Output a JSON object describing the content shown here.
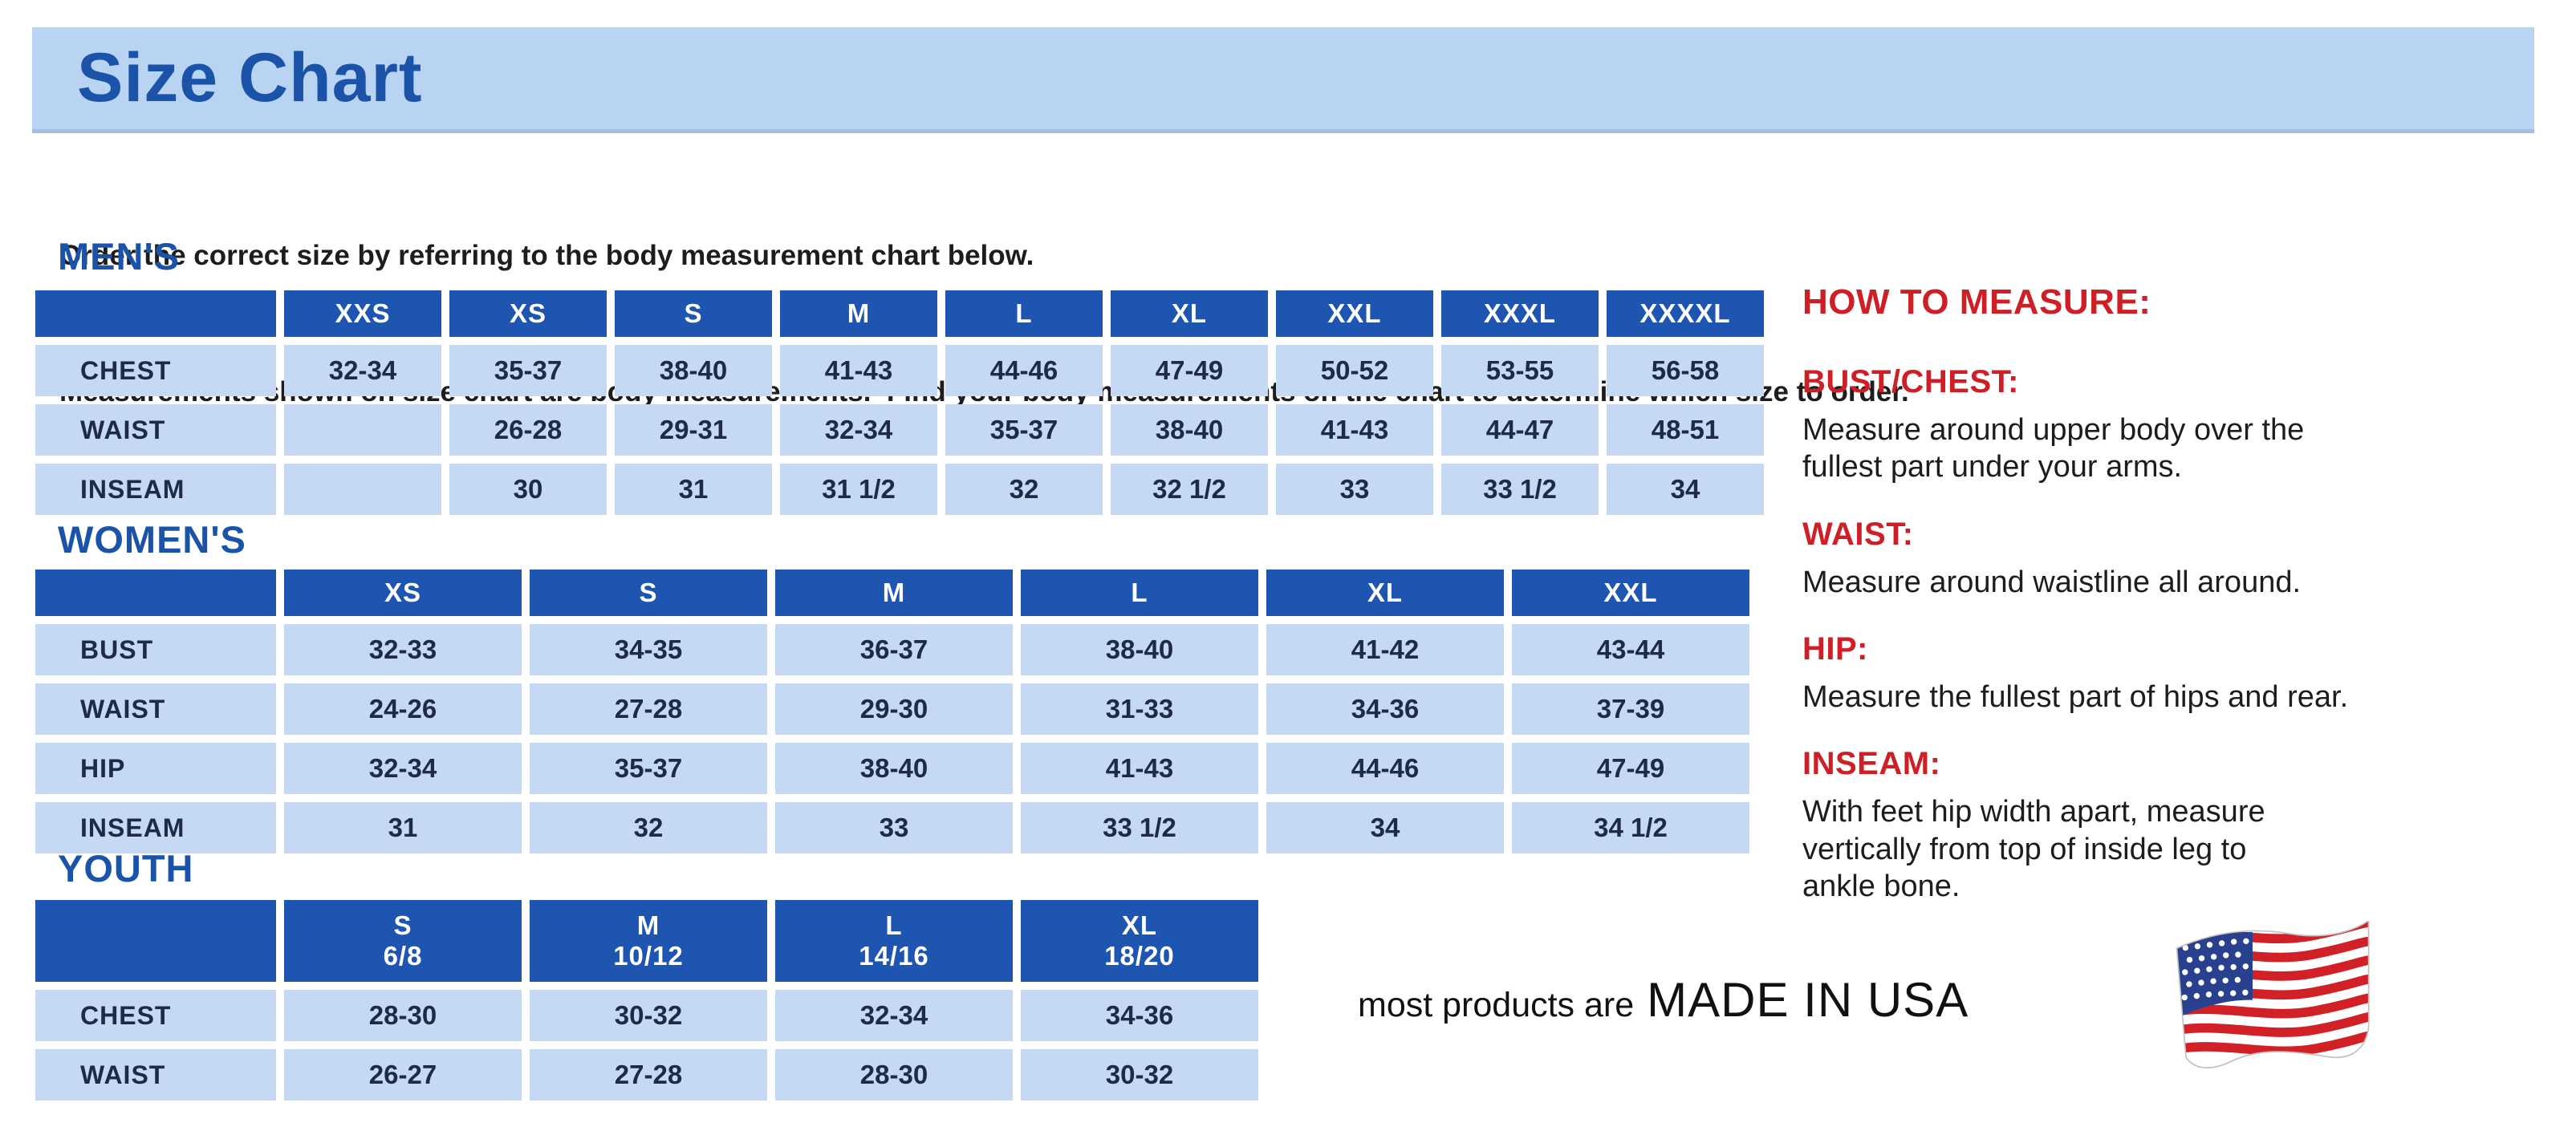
{
  "header": {
    "title": "Size Chart"
  },
  "intro": {
    "line1": "Order the correct size by referring to the body measurement chart below.",
    "line2": "Measurements shown on size chart are body measurements.  Find your body measurements on the chart to determine which size to order."
  },
  "size_tables": [
    {
      "id": "mens",
      "section": "MEN'S",
      "columns": [
        {
          "label": "XXS"
        },
        {
          "label": "XS"
        },
        {
          "label": "S"
        },
        {
          "label": "M"
        },
        {
          "label": "L"
        },
        {
          "label": "XL"
        },
        {
          "label": "XXL"
        },
        {
          "label": "XXXL"
        },
        {
          "label": "XXXXL"
        }
      ],
      "rows": [
        {
          "label": "CHEST",
          "values": [
            "32-34",
            "35-37",
            "38-40",
            "41-43",
            "44-46",
            "47-49",
            "50-52",
            "53-55",
            "56-58"
          ]
        },
        {
          "label": "WAIST",
          "values": [
            "",
            "26-28",
            "29-31",
            "32-34",
            "35-37",
            "38-40",
            "41-43",
            "44-47",
            "48-51"
          ]
        },
        {
          "label": "INSEAM",
          "values": [
            "",
            "30",
            "31",
            "31 1/2",
            "32",
            "32 1/2",
            "33",
            "33 1/2",
            "34"
          ]
        }
      ]
    },
    {
      "id": "womens",
      "section": "WOMEN'S",
      "columns": [
        {
          "label": "XS"
        },
        {
          "label": "S"
        },
        {
          "label": "M"
        },
        {
          "label": "L"
        },
        {
          "label": "XL"
        },
        {
          "label": "XXL"
        }
      ],
      "rows": [
        {
          "label": "BUST",
          "values": [
            "32-33",
            "34-35",
            "36-37",
            "38-40",
            "41-42",
            "43-44"
          ]
        },
        {
          "label": "WAIST",
          "values": [
            "24-26",
            "27-28",
            "29-30",
            "31-33",
            "34-36",
            "37-39"
          ]
        },
        {
          "label": "HIP",
          "values": [
            "32-34",
            "35-37",
            "38-40",
            "41-43",
            "44-46",
            "47-49"
          ]
        },
        {
          "label": "INSEAM",
          "values": [
            "31",
            "32",
            "33",
            "33 1/2",
            "34",
            "34 1/2"
          ]
        }
      ]
    },
    {
      "id": "youth",
      "section": "YOUTH",
      "columns": [
        {
          "label": "S",
          "sub": "6/8"
        },
        {
          "label": "M",
          "sub": "10/12"
        },
        {
          "label": "L",
          "sub": "14/16"
        },
        {
          "label": "XL",
          "sub": "18/20"
        }
      ],
      "rows": [
        {
          "label": "CHEST",
          "values": [
            "28-30",
            "30-32",
            "32-34",
            "34-36"
          ]
        },
        {
          "label": "WAIST",
          "values": [
            "26-27",
            "27-28",
            "28-30",
            "30-32"
          ]
        }
      ]
    }
  ],
  "how_to_measure": {
    "title": "HOW TO MEASURE:",
    "sections": [
      {
        "heading": "BUST/CHEST:",
        "text": "Measure around upper body over the\nfullest part under your arms."
      },
      {
        "heading": "WAIST:",
        "text": "Measure around waistline all around."
      },
      {
        "heading": "HIP:",
        "text": "Measure the fullest part of hips and rear."
      },
      {
        "heading": "INSEAM:",
        "text": "With feet hip width apart, measure\nvertically from top of inside leg to\nankle bone."
      }
    ]
  },
  "footer": {
    "prefix": "most products are",
    "emphasis": "MADE IN USA",
    "flag_icon": "us-flag-icon"
  },
  "colors": {
    "banner_bg": "#b9d3f2",
    "brand_blue": "#1b53a9",
    "header_blue": "#1e55b0",
    "cell_blue": "#c6d9f4",
    "cell_text": "#1e2a47",
    "accent_red": "#cf1f26",
    "flag_red": "#d22027",
    "flag_navy": "#27418f"
  }
}
